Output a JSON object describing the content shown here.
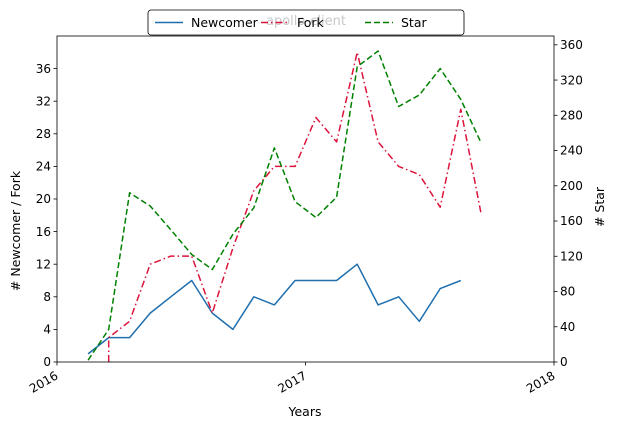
{
  "chart_data": {
    "type": "line",
    "title": "apollo-client",
    "xlabel": "Years",
    "ylabel_left": "# Newcomer / Fork",
    "ylabel_right": "# Star",
    "x_range": [
      2016.0,
      2018.0
    ],
    "x_ticks": [
      {
        "value": 2016.0,
        "label": "2016"
      },
      {
        "value": 2017.0,
        "label": "2017"
      },
      {
        "value": 2018.0,
        "label": "2018"
      }
    ],
    "ylim_left": [
      0,
      40
    ],
    "yticks_left": [
      0,
      4,
      8,
      12,
      16,
      20,
      24,
      28,
      32,
      36
    ],
    "ylim_right": [
      0,
      370
    ],
    "yticks_right": [
      0,
      40,
      80,
      120,
      160,
      200,
      240,
      280,
      320,
      360
    ],
    "legend": {
      "placement": "top-center",
      "columns": 3
    },
    "series": [
      {
        "name": "Newcomer",
        "axis": "left",
        "color": "#1f6fae",
        "style": "solid",
        "x": [
          2016.125,
          2016.208,
          2016.292,
          2016.375,
          2016.458,
          2016.542,
          2016.625,
          2016.708,
          2016.792,
          2016.875,
          2016.958,
          2017.042,
          2017.125,
          2017.208,
          2017.292,
          2017.375,
          2017.458,
          2017.542,
          2017.625
        ],
        "y": [
          1,
          3,
          3,
          6,
          8,
          10,
          6,
          4,
          8,
          7,
          10,
          10,
          10,
          12,
          7,
          8,
          5,
          9,
          10
        ]
      },
      {
        "name": "Fork",
        "axis": "left",
        "color": "#dc143c",
        "style": "dashdot",
        "x": [
          2016.208,
          2016.208,
          2016.292,
          2016.375,
          2016.458,
          2016.542,
          2016.625,
          2016.708,
          2016.792,
          2016.875,
          2016.958,
          2017.042,
          2017.125,
          2017.208,
          2017.292,
          2017.375,
          2017.458,
          2017.542,
          2017.625,
          2017.708
        ],
        "y": [
          0,
          3,
          5,
          12,
          13,
          13,
          6,
          14,
          21,
          24,
          24,
          30,
          27,
          38,
          27,
          24,
          23,
          19,
          31,
          18
        ]
      },
      {
        "name": "Star",
        "axis": "right",
        "color": "#008000",
        "style": "dashed",
        "x": [
          2016.125,
          2016.208,
          2016.292,
          2016.375,
          2016.458,
          2016.542,
          2016.625,
          2016.708,
          2016.792,
          2016.875,
          2016.958,
          2017.042,
          2017.125,
          2017.208,
          2017.292,
          2017.375,
          2017.458,
          2017.542,
          2017.625,
          2017.708
        ],
        "y": [
          2,
          37,
          192,
          177,
          150,
          122,
          105,
          145,
          175,
          243,
          182,
          164,
          187,
          335,
          353,
          290,
          303,
          333,
          298,
          248
        ]
      }
    ]
  }
}
